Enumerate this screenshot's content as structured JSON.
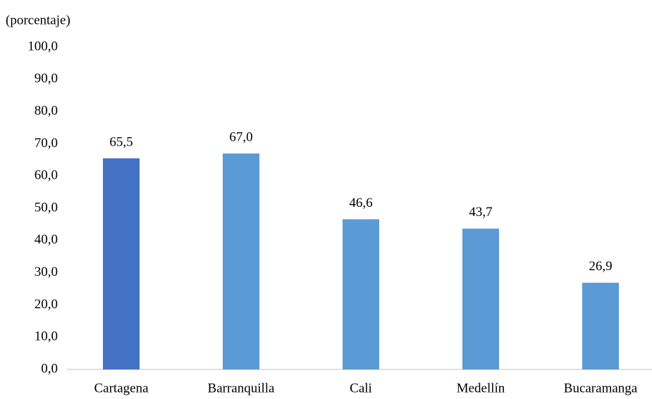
{
  "chart_data": {
    "type": "bar",
    "y_label": "(porcentaje)",
    "categories": [
      "Cartagena",
      "Barranquilla",
      "Cali",
      "Medellín",
      "Bucaramanga"
    ],
    "values": [
      65.5,
      67.0,
      46.6,
      43.7,
      26.9
    ],
    "value_labels": [
      "65,5",
      "67,0",
      "46,6",
      "43,7",
      "26,9"
    ],
    "colors": [
      "#4472c4",
      "#5b9bd5",
      "#5b9bd5",
      "#5b9bd5",
      "#5b9bd5"
    ],
    "ylim": [
      0,
      100
    ],
    "yticks": [
      {
        "value": 0,
        "label": "0,0"
      },
      {
        "value": 10,
        "label": "10,0"
      },
      {
        "value": 20,
        "label": "20,0"
      },
      {
        "value": 30,
        "label": "30,0"
      },
      {
        "value": 40,
        "label": "40,0"
      },
      {
        "value": 50,
        "label": "50,0"
      },
      {
        "value": 60,
        "label": "60,0"
      },
      {
        "value": 70,
        "label": "70,0"
      },
      {
        "value": 80,
        "label": "80,0"
      },
      {
        "value": 90,
        "label": "90,0"
      },
      {
        "value": 100,
        "label": "100,0"
      }
    ],
    "grid": false
  }
}
